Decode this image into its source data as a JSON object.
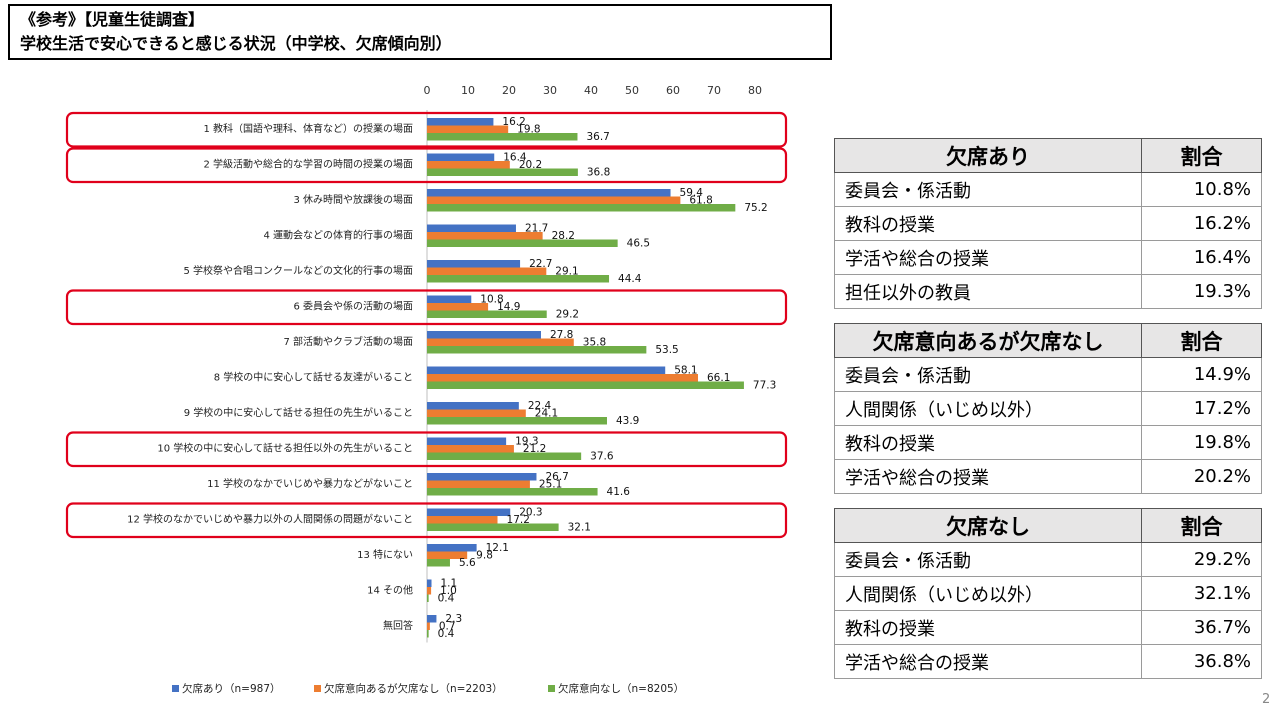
{
  "header": {
    "line1": "《参考》【児童生徒調査】",
    "line2": "学校生活で安心できると感じる状況（中学校、欠席傾向別）"
  },
  "chart_data": {
    "type": "bar",
    "orientation": "horizontal",
    "categories": [
      "1 教科（国語や理科、体育など）の授業の場面",
      "2 学級活動や総合的な学習の時間の授業の場面",
      "3 休み時間や放課後の場面",
      "4 運動会などの体育的行事の場面",
      "5 学校祭や合唱コンクールなどの文化的行事の場面",
      "6 委員会や係の活動の場面",
      "7 部活動やクラブ活動の場面",
      "8 学校の中に安心して話せる友達がいること",
      "9 学校の中に安心して話せる担任の先生がいること",
      "10 学校の中に安心して話せる担任以外の先生がいること",
      "11 学校のなかでいじめや暴力などがないこと",
      "12 学校のなかでいじめや暴力以外の人間関係の問題がないこと",
      "13 特にない",
      "14 その他",
      "無回答"
    ],
    "series": [
      {
        "name": "欠席あり（n=987）",
        "color": "#4472c4",
        "values": [
          16.2,
          16.4,
          59.4,
          21.7,
          22.7,
          10.8,
          27.8,
          58.1,
          22.4,
          19.3,
          26.7,
          20.3,
          12.1,
          1.1,
          2.3
        ]
      },
      {
        "name": "欠席意向あるが欠席なし（n=2203）",
        "color": "#ed7d31",
        "values": [
          19.8,
          20.2,
          61.8,
          28.2,
          29.1,
          14.9,
          35.8,
          66.1,
          24.1,
          21.2,
          25.1,
          17.2,
          9.8,
          1.0,
          0.7
        ]
      },
      {
        "name": "欠席意向なし（n=8205）",
        "color": "#70ad47",
        "values": [
          36.7,
          36.8,
          75.2,
          46.5,
          44.4,
          29.2,
          53.5,
          77.3,
          43.9,
          37.6,
          41.6,
          32.1,
          5.6,
          0.4,
          0.4
        ]
      }
    ],
    "xlim": [
      0,
      80
    ],
    "xticks": [
      0,
      10,
      20,
      30,
      40,
      50,
      60,
      70,
      80
    ],
    "legend_position": "bottom",
    "highlighted_indices": [
      0,
      1,
      5,
      9,
      11
    ],
    "highlight_color": "#e0001b"
  },
  "tables": [
    {
      "header": "欠席あり",
      "col": "割合",
      "rows": [
        [
          "委員会・係活動",
          "10.8%"
        ],
        [
          "教科の授業",
          "16.2%"
        ],
        [
          "学活や総合の授業",
          "16.4%"
        ],
        [
          "担任以外の教員",
          "19.3%"
        ]
      ]
    },
    {
      "header": "欠席意向あるが欠席なし",
      "col": "割合",
      "rows": [
        [
          "委員会・係活動",
          "14.9%"
        ],
        [
          "人間関係（いじめ以外）",
          "17.2%"
        ],
        [
          "教科の授業",
          "19.8%"
        ],
        [
          "学活や総合の授業",
          "20.2%"
        ]
      ]
    },
    {
      "header": "欠席なし",
      "col": "割合",
      "rows": [
        [
          "委員会・係活動",
          "29.2%"
        ],
        [
          "人間関係（いじめ以外）",
          "32.1%"
        ],
        [
          "教科の授業",
          "36.7%"
        ],
        [
          "学活や総合の授業",
          "36.8%"
        ]
      ]
    }
  ],
  "page_number": "2"
}
